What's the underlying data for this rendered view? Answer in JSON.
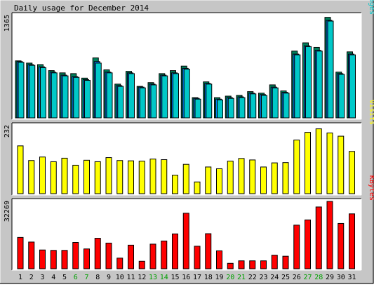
{
  "title": "Daily usage for December 2014",
  "colors": {
    "background": "#c6c6c6",
    "plot": "#ffffff",
    "hits": "#00805c",
    "files": "#0080ff",
    "pages": "#00c8c8",
    "visits": "#ffff00",
    "kbytes": "#ff0000",
    "weekday": "#000000",
    "weekend": "#00a000"
  },
  "weekend_days": [
    "6",
    "7",
    "13",
    "14",
    "20",
    "21",
    "27",
    "28"
  ],
  "chart_data": [
    {
      "type": "bar",
      "ylabel": "Pages/Files/Hits",
      "ylabel_parts": [
        {
          "text": "Pages",
          "color": "#00c8c8"
        },
        {
          "text": "/",
          "color": "#000000"
        },
        {
          "text": "Files",
          "color": "#0080ff"
        },
        {
          "text": "/",
          "color": "#000000"
        },
        {
          "text": "Hits",
          "color": "#00805c"
        }
      ],
      "ymax_label": "1365",
      "ylim": [
        0,
        1365
      ],
      "categories": [
        "1",
        "2",
        "3",
        "4",
        "5",
        "6",
        "7",
        "8",
        "9",
        "10",
        "11",
        "12",
        "13",
        "14",
        "15",
        "16",
        "17",
        "18",
        "19",
        "20",
        "21",
        "22",
        "23",
        "24",
        "25",
        "26",
        "27",
        "28",
        "29",
        "30",
        "31"
      ],
      "series": [
        {
          "name": "Hits",
          "values": [
            760,
            730,
            710,
            630,
            600,
            590,
            530,
            800,
            640,
            450,
            620,
            420,
            470,
            590,
            630,
            690,
            270,
            480,
            270,
            290,
            300,
            350,
            330,
            440,
            360,
            890,
            1000,
            940,
            1340,
            610,
            880
          ]
        },
        {
          "name": "Files",
          "values": [
            750,
            710,
            680,
            610,
            570,
            550,
            510,
            750,
            610,
            430,
            600,
            410,
            450,
            570,
            600,
            660,
            260,
            460,
            250,
            270,
            280,
            330,
            310,
            410,
            340,
            850,
            960,
            900,
            1300,
            590,
            850
          ]
        },
        {
          "name": "Pages",
          "values": [
            740,
            700,
            670,
            600,
            560,
            540,
            500,
            730,
            600,
            420,
            590,
            400,
            440,
            560,
            590,
            650,
            250,
            450,
            240,
            260,
            270,
            320,
            300,
            400,
            330,
            840,
            950,
            890,
            1290,
            580,
            840
          ]
        }
      ]
    },
    {
      "type": "bar",
      "ylabel": "Visits",
      "ymax_label": "232",
      "ylim": [
        0,
        232
      ],
      "categories": [
        "1",
        "2",
        "3",
        "4",
        "5",
        "6",
        "7",
        "8",
        "9",
        "10",
        "11",
        "12",
        "13",
        "14",
        "15",
        "16",
        "17",
        "18",
        "19",
        "20",
        "21",
        "22",
        "23",
        "24",
        "25",
        "26",
        "27",
        "28",
        "29",
        "30",
        "31"
      ],
      "series": [
        {
          "name": "Visits",
          "values": [
            163,
            113,
            125,
            109,
            121,
            97,
            114,
            109,
            123,
            113,
            112,
            111,
            118,
            116,
            63,
            100,
            40,
            91,
            85,
            111,
            120,
            115,
            91,
            105,
            106,
            183,
            209,
            221,
            207,
            196,
            144
          ]
        }
      ]
    },
    {
      "type": "bar",
      "ylabel": "KBytes",
      "ymax_label": "32269",
      "ylim": [
        0,
        32269
      ],
      "categories": [
        "1",
        "2",
        "3",
        "4",
        "5",
        "6",
        "7",
        "8",
        "9",
        "10",
        "11",
        "12",
        "13",
        "14",
        "15",
        "16",
        "17",
        "18",
        "19",
        "20",
        "21",
        "22",
        "23",
        "24",
        "25",
        "26",
        "27",
        "28",
        "29",
        "30",
        "31"
      ],
      "series": [
        {
          "name": "KBytes",
          "values": [
            15000,
            12800,
            9000,
            8800,
            8800,
            12600,
            9500,
            14600,
            12300,
            5100,
            11300,
            3600,
            11800,
            13300,
            16700,
            26600,
            10800,
            16800,
            8600,
            2600,
            3800,
            3800,
            3800,
            6500,
            6000,
            20900,
            23400,
            29600,
            32269,
            21700,
            26300
          ]
        }
      ]
    }
  ]
}
